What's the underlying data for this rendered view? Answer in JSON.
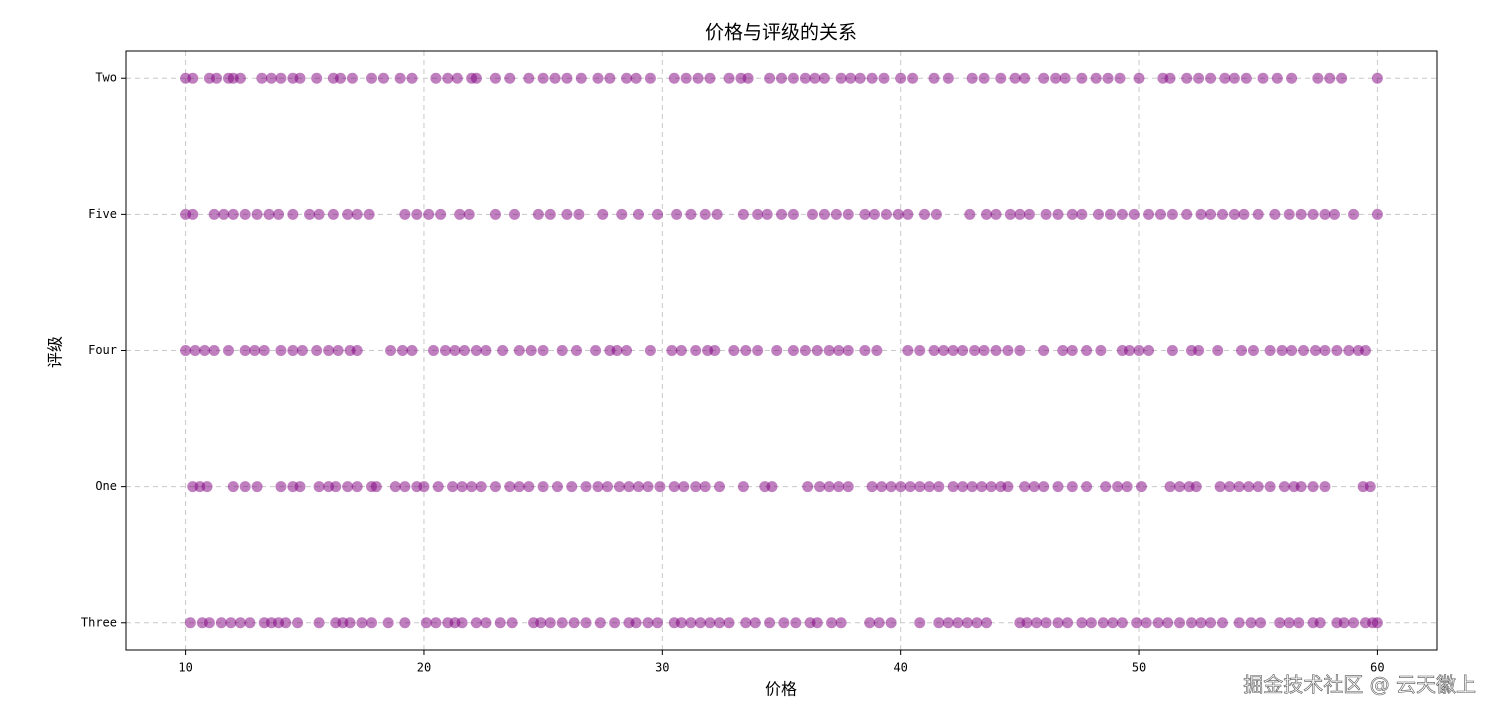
{
  "chart_data": {
    "type": "scatter",
    "title": "价格与评级的关系",
    "x_label": "价格",
    "y_label": "评级",
    "watermark": "掘金技术社区 @ 云天徽上",
    "color": "#800080",
    "alpha": 0.5,
    "grid": true,
    "xlim": [
      7.5,
      62.5
    ],
    "xticks": [
      10,
      20,
      30,
      40,
      50,
      60
    ],
    "categories": [
      "Three",
      "One",
      "Four",
      "Five",
      "Two"
    ],
    "x_by_category": [
      [
        10.2,
        10.7,
        11.0,
        11.5,
        11.9,
        12.3,
        12.7,
        13.3,
        13.6,
        13.9,
        14.2,
        14.7,
        15.6,
        16.3,
        16.6,
        16.9,
        17.4,
        17.8,
        18.5,
        19.2,
        20.1,
        20.5,
        21.0,
        21.3,
        21.6,
        22.2,
        22.6,
        23.2,
        23.7,
        24.6,
        24.9,
        25.3,
        25.8,
        26.3,
        26.8,
        27.4,
        28.0,
        28.6,
        28.9,
        29.4,
        29.8,
        30.5,
        30.8,
        31.2,
        31.6,
        32.0,
        32.4,
        32.8,
        33.5,
        33.9,
        34.5,
        35.1,
        35.6,
        36.2,
        36.5,
        37.1,
        37.5,
        38.7,
        39.1,
        39.6,
        40.8,
        41.6,
        42.0,
        42.4,
        42.8,
        43.2,
        43.6,
        45.0,
        45.3,
        45.7,
        46.1,
        46.6,
        47.0,
        47.6,
        48.0,
        48.5,
        48.9,
        49.3,
        49.9,
        50.3,
        50.8,
        51.2,
        51.7,
        52.2,
        52.6,
        53.0,
        53.5,
        54.2,
        54.7,
        55.1,
        55.9,
        56.3,
        56.7,
        57.3,
        57.6,
        58.3,
        58.6,
        59.0,
        59.5,
        59.8,
        60.0
      ],
      [
        10.3,
        10.6,
        10.9,
        12.0,
        12.5,
        13.0,
        14.0,
        14.5,
        14.8,
        15.6,
        16.0,
        16.3,
        16.8,
        17.2,
        17.8,
        18.0,
        18.8,
        19.2,
        19.7,
        20.0,
        20.6,
        21.2,
        21.6,
        22.0,
        22.4,
        23.0,
        23.6,
        24.0,
        24.4,
        25.0,
        25.6,
        26.2,
        26.8,
        27.3,
        27.7,
        28.2,
        28.6,
        29.0,
        29.4,
        29.9,
        30.5,
        30.9,
        31.4,
        31.8,
        32.4,
        33.4,
        34.3,
        34.6,
        36.1,
        36.6,
        37.0,
        37.4,
        37.8,
        38.8,
        39.2,
        39.6,
        40.0,
        40.4,
        40.8,
        41.2,
        41.6,
        42.2,
        42.6,
        43.0,
        43.4,
        43.8,
        44.2,
        44.5,
        45.2,
        45.6,
        46.0,
        46.6,
        47.2,
        47.8,
        48.6,
        49.1,
        49.5,
        50.1,
        51.3,
        51.7,
        52.1,
        52.4,
        53.4,
        53.8,
        54.2,
        54.6,
        55.0,
        55.5,
        56.1,
        56.5,
        56.8,
        57.3,
        57.8,
        59.4,
        59.7
      ],
      [
        10.0,
        10.4,
        10.8,
        11.2,
        11.8,
        12.5,
        12.9,
        13.3,
        14.0,
        14.5,
        14.9,
        15.5,
        16.0,
        16.4,
        16.9,
        17.2,
        18.6,
        19.1,
        19.5,
        20.4,
        20.9,
        21.3,
        21.7,
        22.2,
        22.6,
        23.3,
        24.0,
        24.5,
        25.0,
        25.8,
        26.4,
        27.2,
        27.8,
        28.1,
        28.5,
        29.5,
        30.4,
        30.8,
        31.4,
        31.9,
        32.2,
        33.0,
        33.5,
        34.0,
        34.8,
        35.5,
        36.0,
        36.5,
        37.0,
        37.4,
        37.8,
        38.5,
        39.0,
        40.3,
        40.8,
        41.4,
        41.8,
        42.2,
        42.6,
        43.1,
        43.5,
        44.0,
        44.5,
        45.0,
        46.0,
        46.8,
        47.2,
        47.8,
        48.4,
        49.3,
        49.6,
        50.0,
        50.4,
        51.4,
        52.2,
        52.5,
        53.3,
        54.3,
        54.8,
        55.5,
        56.0,
        56.4,
        56.9,
        57.4,
        57.8,
        58.3,
        58.8,
        59.2,
        59.5
      ],
      [
        10.0,
        10.3,
        11.2,
        11.6,
        12.0,
        12.5,
        13.0,
        13.5,
        13.9,
        14.5,
        15.2,
        15.6,
        16.2,
        16.8,
        17.2,
        17.7,
        19.2,
        19.7,
        20.2,
        20.7,
        21.5,
        21.9,
        23.0,
        23.8,
        24.8,
        25.3,
        26.0,
        26.5,
        27.5,
        28.3,
        29.0,
        29.8,
        30.6,
        31.2,
        31.8,
        32.3,
        33.4,
        34.0,
        34.4,
        35.0,
        35.5,
        36.3,
        36.8,
        37.3,
        37.8,
        38.5,
        38.9,
        39.4,
        39.9,
        40.3,
        41.0,
        41.5,
        42.9,
        43.6,
        44.0,
        44.6,
        45.0,
        45.4,
        46.1,
        46.6,
        47.2,
        47.6,
        48.3,
        48.8,
        49.3,
        49.8,
        50.4,
        50.9,
        51.4,
        52.0,
        52.6,
        53.0,
        53.5,
        54.0,
        54.4,
        55.0,
        55.7,
        56.3,
        56.8,
        57.3,
        57.8,
        58.2,
        59.0,
        60.0
      ],
      [
        10.0,
        10.3,
        11.0,
        11.3,
        11.8,
        12.0,
        12.3,
        13.2,
        13.6,
        14.0,
        14.5,
        14.8,
        15.5,
        16.2,
        16.5,
        17.0,
        17.8,
        18.3,
        19.0,
        19.5,
        20.5,
        21.0,
        21.4,
        22.0,
        22.2,
        23.0,
        23.6,
        24.4,
        25.0,
        25.5,
        26.0,
        26.6,
        27.3,
        27.8,
        28.5,
        28.9,
        29.5,
        30.5,
        31.0,
        31.5,
        32.0,
        32.8,
        33.3,
        33.6,
        34.5,
        35.0,
        35.5,
        36.0,
        36.4,
        36.8,
        37.5,
        37.9,
        38.3,
        38.8,
        39.3,
        40.0,
        40.5,
        41.4,
        42.0,
        43.0,
        43.5,
        44.2,
        44.8,
        45.2,
        46.0,
        46.5,
        46.9,
        47.6,
        48.2,
        48.7,
        49.2,
        50.0,
        51.0,
        51.3,
        52.0,
        52.5,
        53.0,
        53.6,
        54.0,
        54.5,
        55.2,
        55.8,
        56.4,
        57.5,
        58.0,
        58.5,
        60.0
      ]
    ]
  }
}
